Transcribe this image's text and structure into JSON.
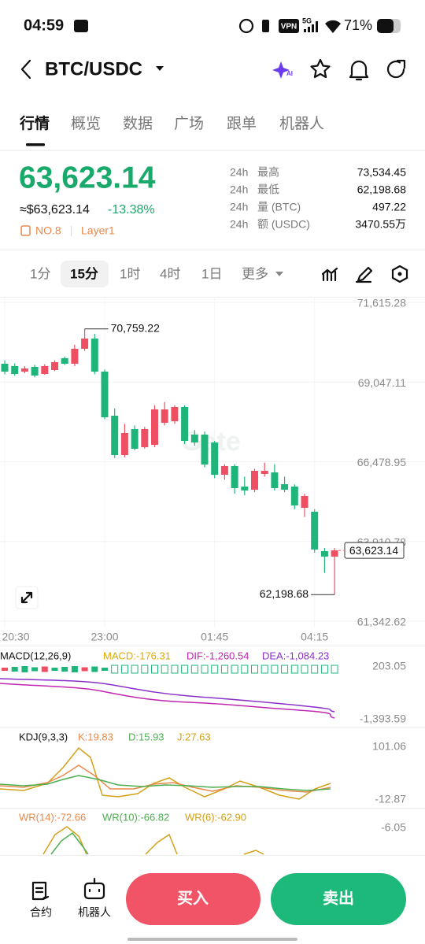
{
  "status_bar": {
    "time": "04:59",
    "vpn": "VPN",
    "network": "5G",
    "battery": "71%"
  },
  "header": {
    "pair": "BTC/USDC",
    "ai": "AI"
  },
  "tabs": [
    "行情",
    "概览",
    "数据",
    "广场",
    "跟单",
    "机器人"
  ],
  "price": {
    "last": "63,623.14",
    "fiat": "≈$63,623.14",
    "change": "-13.38%",
    "rank": "NO.8",
    "tag": "Layer1"
  },
  "stats": [
    {
      "period": "24h",
      "name": "最高",
      "value": "73,534.45"
    },
    {
      "period": "24h",
      "name": "最低",
      "value": "62,198.68"
    },
    {
      "period": "24h",
      "name": "量 (BTC)",
      "value": "497.22"
    },
    {
      "period": "24h",
      "name": "额 (USDC)",
      "value": "3470.55万"
    }
  ],
  "intervals": [
    "1分",
    "15分",
    "1时",
    "4时",
    "1日",
    "更多"
  ],
  "chart_data": {
    "type": "candlestick",
    "watermark": "Gate",
    "up_color": "#ef4f62",
    "down_color": "#1fb57a",
    "categories": [
      "20:30",
      null,
      null,
      null,
      null,
      null,
      null,
      null,
      null,
      null,
      "23:00",
      null,
      null,
      null,
      null,
      null,
      null,
      null,
      null,
      null,
      null,
      "01:45",
      null,
      null,
      null,
      null,
      null,
      null,
      null,
      null,
      null,
      "04:15",
      null,
      null
    ],
    "open": [
      69637,
      69561,
      69383,
      69535,
      69307,
      69434,
      69814,
      69637,
      70119,
      70448,
      69383,
      67963,
      66695,
      67532,
      66949,
      67025,
      67735,
      67786,
      68242,
      67355,
      67355,
      67101,
      66061,
      66340,
      65681,
      65579,
      66087,
      66137,
      65757,
      65681,
      64996,
      64869,
      63601,
      63424
    ],
    "high": [
      69750,
      69650,
      69560,
      69600,
      69620,
      69750,
      69870,
      70250,
      70759.22,
      70600,
      69450,
      68200,
      67700,
      67650,
      67600,
      68300,
      68400,
      68300,
      68300,
      67500,
      67450,
      67150,
      66400,
      66400,
      66000,
      66250,
      66450,
      66400,
      66000,
      65750,
      65450,
      64950,
      63700,
      63700
    ],
    "low": [
      69300,
      69250,
      69330,
      69200,
      69280,
      69400,
      69600,
      69560,
      70050,
      69300,
      67850,
      66600,
      66620,
      66850,
      66900,
      66950,
      67650,
      67700,
      67050,
      67000,
      66300,
      65950,
      65900,
      65450,
      65400,
      65500,
      66000,
      65550,
      65500,
      64950,
      64700,
      63550,
      62900,
      62198.68
    ],
    "close": [
      69383,
      69307,
      69485,
      69257,
      69561,
      69688,
      69637,
      70119,
      70448,
      69383,
      67912,
      66695,
      67405,
      66898,
      67532,
      68166,
      68166,
      68242,
      67152,
      67101,
      66391,
      66061,
      66340,
      65630,
      65554,
      66188,
      66188,
      65630,
      65579,
      65072,
      65376,
      63652,
      63424,
      63623.14
    ],
    "ylim": [
      61342.62,
      71615.28
    ],
    "yticks": [
      {
        "value": 71615.28,
        "label": "71,615.28"
      },
      {
        "value": 69047.11,
        "label": "69,047.11"
      },
      {
        "value": 66478.95,
        "label": "66,478.95"
      },
      {
        "value": 63910.78,
        "label": "63,910.78"
      },
      {
        "value": 61342.62,
        "label": "61,342.62"
      }
    ],
    "annotations": [
      {
        "value": 70759.22,
        "label": "70,759.22"
      },
      {
        "value": 62198.68,
        "label": "62,198.68"
      }
    ],
    "last_price": {
      "value": 63623.14,
      "label": "63,623.14"
    }
  },
  "indicators": {
    "macd": {
      "name": "MACD(12,26,9)",
      "readouts": [
        "MACD:-176.31",
        "DIF:-1,260.54",
        "DEA:-1,084.23"
      ],
      "ticks": [
        "203.05",
        "-1,393.59"
      ]
    },
    "kdj": {
      "name": "KDJ(9,3,3)",
      "readouts": [
        "K:19.83",
        "D:15.93",
        "J:27.63"
      ],
      "ticks": [
        "101.06",
        "-12.87"
      ]
    },
    "wr": {
      "name": "WR(14):-72.66",
      "readouts": [
        "WR(10):-66.82",
        "WR(6):-62.90"
      ],
      "ticks": [
        "-6.05"
      ]
    }
  },
  "bottom_bar": {
    "contract": "合约",
    "robot": "机器人",
    "buy": "买入",
    "sell": "卖出"
  }
}
